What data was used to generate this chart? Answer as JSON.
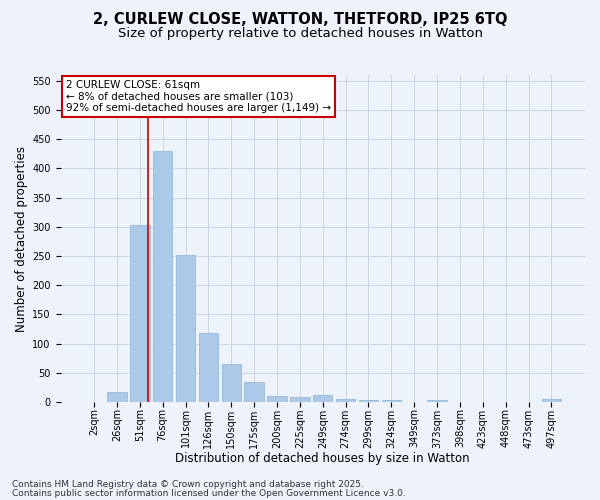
{
  "title_line1": "2, CURLEW CLOSE, WATTON, THETFORD, IP25 6TQ",
  "title_line2": "Size of property relative to detached houses in Watton",
  "xlabel": "Distribution of detached houses by size in Watton",
  "ylabel": "Number of detached properties",
  "categories": [
    "2sqm",
    "26sqm",
    "51sqm",
    "76sqm",
    "101sqm",
    "126sqm",
    "150sqm",
    "175sqm",
    "200sqm",
    "225sqm",
    "249sqm",
    "274sqm",
    "299sqm",
    "324sqm",
    "349sqm",
    "373sqm",
    "398sqm",
    "423sqm",
    "448sqm",
    "473sqm",
    "497sqm"
  ],
  "values": [
    0,
    18,
    303,
    430,
    252,
    118,
    65,
    35,
    10,
    8,
    12,
    5,
    3,
    3,
    0,
    3,
    0,
    0,
    0,
    0,
    5
  ],
  "bar_color": "#adc9e8",
  "bar_edge_color": "#8ab4d8",
  "grid_color": "#c8cfe0",
  "background_color": "#eef2fb",
  "vline_x": 2.35,
  "vline_color": "#cc0000",
  "annotation_text": "2 CURLEW CLOSE: 61sqm\n← 8% of detached houses are smaller (103)\n92% of semi-detached houses are larger (1,149) →",
  "annotation_box_color": "#ffffff",
  "annotation_box_edge": "#cc0000",
  "ylim": [
    0,
    560
  ],
  "yticks": [
    0,
    50,
    100,
    150,
    200,
    250,
    300,
    350,
    400,
    450,
    500,
    550
  ],
  "footer_line1": "Contains HM Land Registry data © Crown copyright and database right 2025.",
  "footer_line2": "Contains public sector information licensed under the Open Government Licence v3.0.",
  "title_fontsize": 10.5,
  "subtitle_fontsize": 9.5,
  "axis_label_fontsize": 8.5,
  "tick_fontsize": 7,
  "annotation_fontsize": 7.5,
  "footer_fontsize": 6.5
}
